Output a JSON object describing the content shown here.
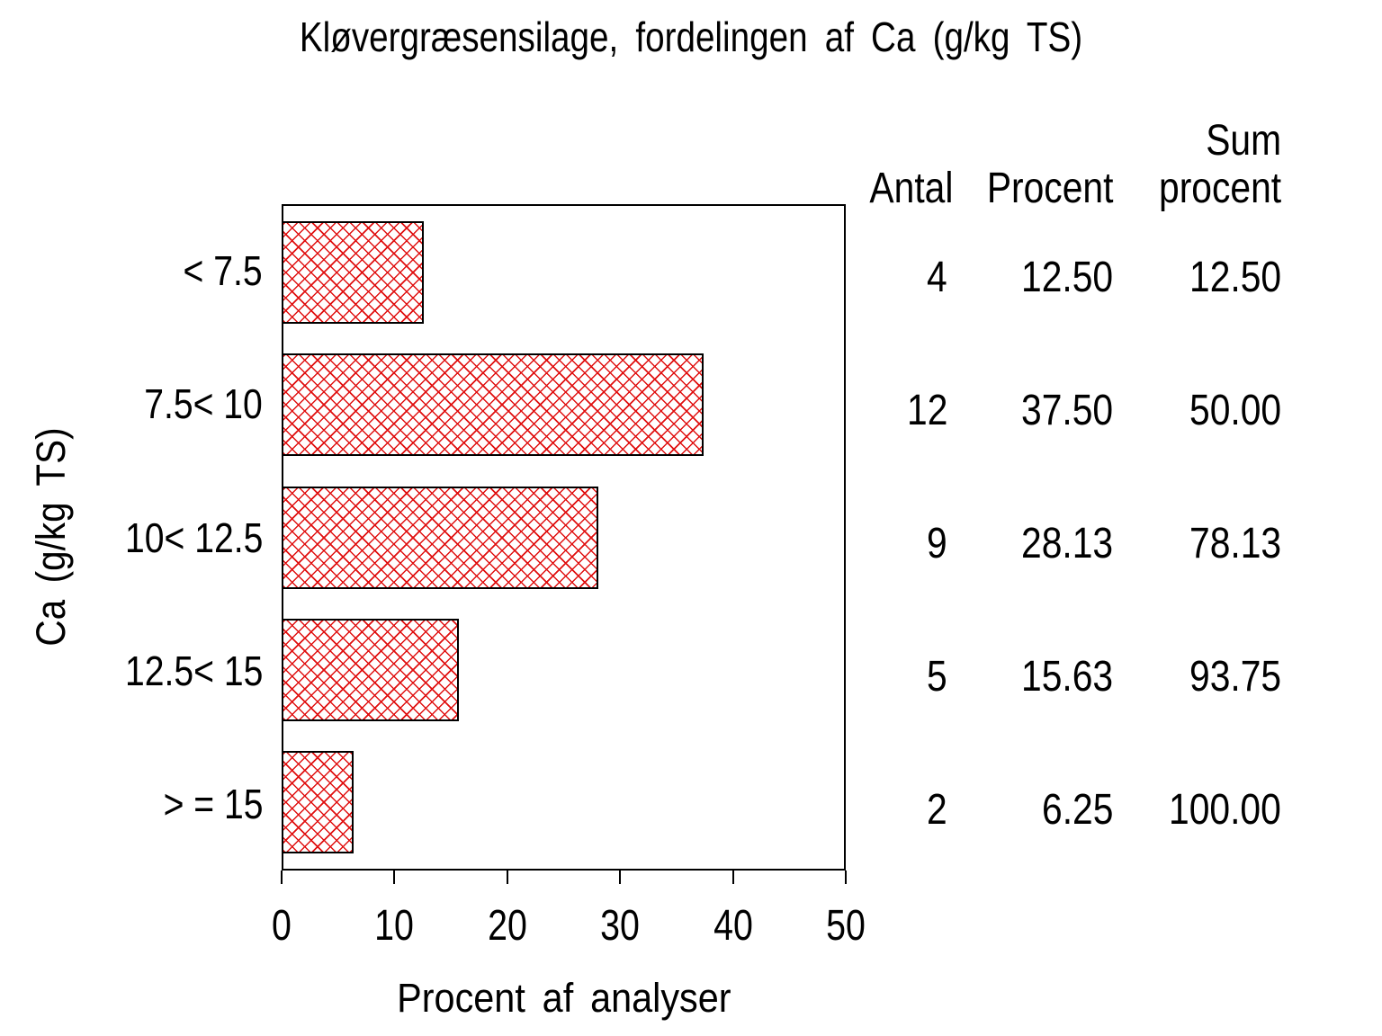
{
  "chart_data": {
    "type": "bar",
    "orientation": "horizontal",
    "title": "Kløvergræsensilage, fordelingen af Ca (g/kg TS)",
    "xlabel": "Procent af analyser",
    "ylabel": "Ca (g/kg TS)",
    "categories": [
      "< 7.5",
      "7.5< 10",
      "10< 12.5",
      "12.5< 15",
      "> = 15"
    ],
    "values": [
      12.5,
      37.5,
      28.13,
      15.63,
      6.25
    ],
    "xlim": [
      0,
      50
    ],
    "xticks": [
      "0",
      "10",
      "20",
      "30",
      "40",
      "50"
    ],
    "grid": false,
    "bar_fill_style": "red-crosshatch",
    "bar_line_color": "#e01010",
    "bar_border_color": "#000000",
    "table": {
      "headers": [
        "Antal",
        "Procent",
        "Sum\nprocent"
      ],
      "rows": [
        [
          "4",
          "12.50",
          "12.50"
        ],
        [
          "12",
          "37.50",
          "50.00"
        ],
        [
          "9",
          "28.13",
          "78.13"
        ],
        [
          "5",
          "15.63",
          "93.75"
        ],
        [
          "2",
          "6.25",
          "100.00"
        ]
      ]
    }
  }
}
